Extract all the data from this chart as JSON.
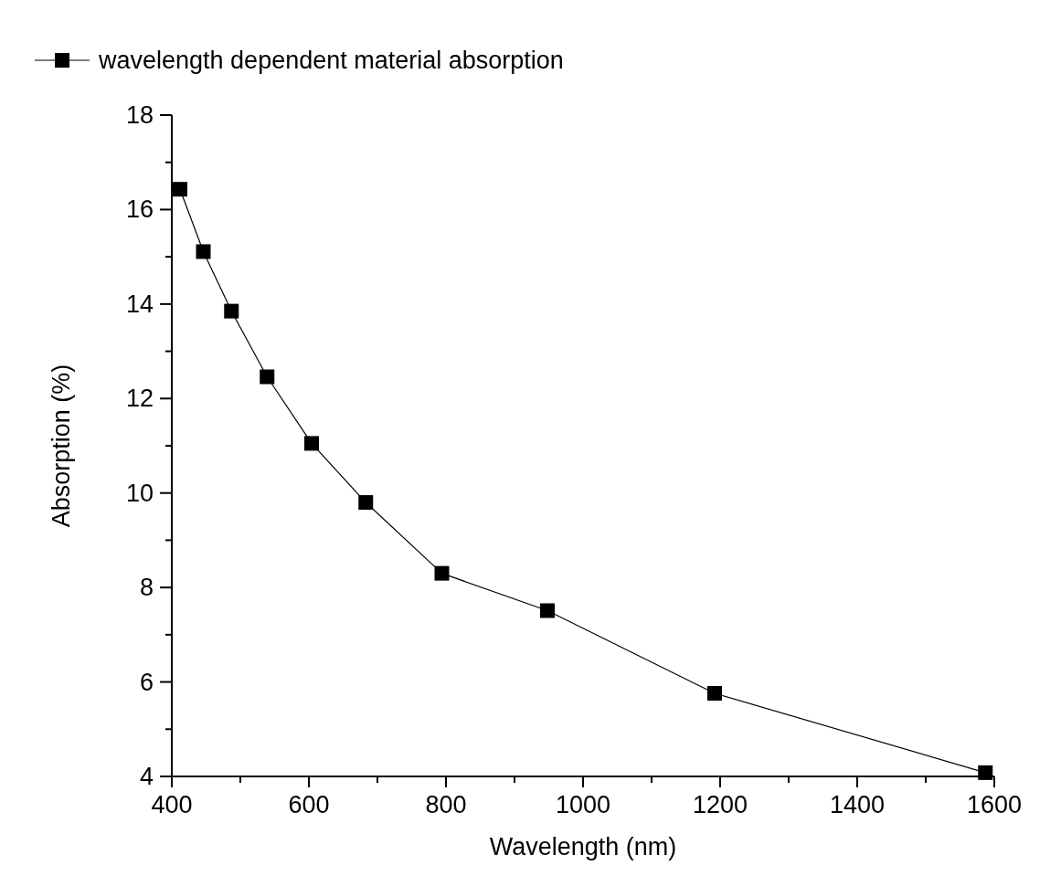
{
  "chart_data": {
    "type": "line",
    "xlabel": "Wavelength (nm)",
    "ylabel": "Absorption (%)",
    "xlim": [
      400,
      1600
    ],
    "ylim": [
      4,
      18
    ],
    "xticks": [
      400,
      {
        "value": 500,
        "label": null
      },
      600,
      {
        "value": 700,
        "label": null
      },
      800,
      {
        "value": 900,
        "label": null
      },
      1000,
      {
        "value": 1100,
        "label": null
      },
      1200,
      {
        "value": 1300,
        "label": null
      },
      1400,
      {
        "value": 1500,
        "label": null
      },
      1600
    ],
    "yticks": [
      4,
      {
        "value": 5,
        "label": null
      },
      6,
      {
        "value": 7,
        "label": null
      },
      8,
      {
        "value": 9,
        "label": null
      },
      10,
      {
        "value": 11,
        "label": null
      },
      12,
      {
        "value": 13,
        "label": null
      },
      14,
      {
        "value": 15,
        "label": null
      },
      16,
      {
        "value": 17,
        "label": null
      },
      18
    ],
    "marker": "square",
    "line_style": "solid",
    "legend": "top",
    "grid": false,
    "series": [
      {
        "name": "wavelength dependent material absorption",
        "color": "#000000",
        "x": [
          412,
          446,
          487,
          539,
          604,
          683,
          794,
          948,
          1192,
          1587
        ],
        "values": [
          16.43,
          15.11,
          13.85,
          12.46,
          11.05,
          9.8,
          8.3,
          7.51,
          5.76,
          4.08
        ]
      }
    ]
  }
}
